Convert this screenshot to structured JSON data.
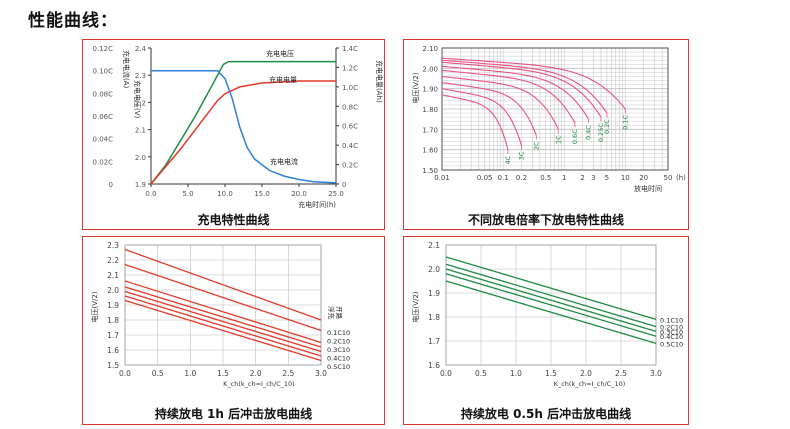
{
  "page": {
    "title": "性能曲线："
  },
  "colors": {
    "frame": "#d9352b",
    "red": "#e03a2a",
    "green": "#1f8a44",
    "blue": "#2f7ed8",
    "pink": "#e8527e",
    "grid": "#bdbdbd"
  },
  "panels": [
    {
      "caption": "充电特性曲线"
    },
    {
      "caption": "不同放电倍率下放电特性曲线"
    },
    {
      "caption": "持续放电 1h 后冲击放电曲线"
    },
    {
      "caption": "持续放电 0.5h 后冲击放电曲线"
    }
  ],
  "chart_data": [
    {
      "type": "line",
      "title": "充电特性曲线",
      "xlabel": "充电时间(h)",
      "xlim": [
        0,
        25
      ],
      "x_ticks": [
        "0.0",
        "5.0",
        "10.0",
        "15.0",
        "20.0",
        "25.0"
      ],
      "left_axis_labels": [
        "充电电流(A)",
        "充电电压(V)"
      ],
      "current_ticks": [
        "0.12C",
        "0.10C",
        "0.08C",
        "0.06C",
        "0.04C",
        "0.02C",
        "0"
      ],
      "voltage_ticks": [
        "2.4",
        "2.3",
        "2.2",
        "2.1",
        "2.0",
        "1.9"
      ],
      "voltage_ylim": [
        1.9,
        2.4
      ],
      "right_axis_label": "充电电量(Ah)",
      "charge_ticks": [
        "1.4C",
        "1.2C",
        "1.0C",
        "0.8C",
        "0.6C",
        "0.4C",
        "0.2C",
        "0"
      ],
      "series": [
        {
          "name": "充电电压",
          "color": "#1f8a44",
          "x": [
            0,
            2,
            4,
            6,
            8,
            9,
            9.8,
            10.5,
            12,
            15,
            20,
            25
          ],
          "y": [
            1.9,
            1.97,
            2.06,
            2.15,
            2.25,
            2.3,
            2.34,
            2.35,
            2.35,
            2.35,
            2.35,
            2.35
          ]
        },
        {
          "name": "充电电量",
          "color": "#e03a2a",
          "x": [
            0,
            2,
            4,
            6,
            8,
            9,
            10,
            12,
            15,
            20,
            25
          ],
          "y": [
            0,
            0.18,
            0.36,
            0.56,
            0.76,
            0.86,
            0.93,
            1.0,
            1.04,
            1.06,
            1.06
          ]
        },
        {
          "name": "充电电流",
          "color": "#2f7ed8",
          "x": [
            0,
            8,
            9,
            10,
            11,
            12,
            13,
            14,
            16,
            18,
            20,
            22,
            25
          ],
          "y": [
            0.1,
            0.1,
            0.1,
            0.093,
            0.075,
            0.05,
            0.032,
            0.022,
            0.012,
            0.007,
            0.004,
            0.002,
            0.001
          ]
        }
      ]
    },
    {
      "type": "line",
      "title": "不同放电倍率下放电特性曲线",
      "xlabel": "放电时间",
      "x_unit": "(h)",
      "ylabel": "电压(V/2)",
      "x_scale": "log",
      "xlim": [
        0.01,
        50
      ],
      "ylim": [
        1.5,
        2.1
      ],
      "x_ticks": [
        "0.01",
        "0.05",
        "0.1",
        "0.2",
        "0.5",
        "1",
        "2",
        "3",
        "5",
        "10",
        "20",
        "50"
      ],
      "x_tick_values": [
        0.01,
        0.05,
        0.1,
        0.2,
        0.5,
        1,
        2,
        3,
        5,
        10,
        20,
        50
      ],
      "y_ticks": [
        "2.10",
        "2.00",
        "1.90",
        "1.80",
        "1.70",
        "1.60",
        "1.50"
      ],
      "series": [
        {
          "name": "0.1C",
          "v0": 2.05,
          "end_x": 10,
          "end_y": 1.8
        },
        {
          "name": "0.2C",
          "v0": 2.04,
          "end_x": 5,
          "end_y": 1.78
        },
        {
          "name": "0.25C",
          "v0": 2.03,
          "end_x": 4,
          "end_y": 1.76
        },
        {
          "name": "0.4C",
          "v0": 2.01,
          "end_x": 2.5,
          "end_y": 1.75
        },
        {
          "name": "0.6C",
          "v0": 1.99,
          "end_x": 1.5,
          "end_y": 1.73
        },
        {
          "name": "1C",
          "v0": 1.96,
          "end_x": 0.8,
          "end_y": 1.7
        },
        {
          "name": "2C",
          "v0": 1.93,
          "end_x": 0.35,
          "end_y": 1.67
        },
        {
          "name": "3C",
          "v0": 1.9,
          "end_x": 0.2,
          "end_y": 1.62
        },
        {
          "name": "4C",
          "v0": 1.87,
          "end_x": 0.12,
          "end_y": 1.6
        }
      ]
    },
    {
      "type": "line",
      "title": "持续放电 1h 后冲击放电曲线",
      "xlabel": "K_ch(k_ch=I_ch/C_10)",
      "ylabel": "电压(V/2)",
      "xlim": [
        0,
        3
      ],
      "ylim": [
        1.5,
        2.3
      ],
      "x_ticks": [
        "0.0",
        "0.5",
        "1.0",
        "1.5",
        "2.0",
        "2.5",
        "3.0"
      ],
      "y_ticks": [
        "2.3",
        "2.2",
        "2.1",
        "2.0",
        "1.9",
        "1.8",
        "1.7",
        "1.6",
        "1.5"
      ],
      "series": [
        {
          "name": "浮充",
          "x": [
            0,
            3
          ],
          "y": [
            2.27,
            1.8
          ]
        },
        {
          "name": "开路",
          "x": [
            0,
            3
          ],
          "y": [
            2.17,
            1.73
          ]
        },
        {
          "name": "0.1C10",
          "x": [
            0,
            3
          ],
          "y": [
            2.06,
            1.65
          ]
        },
        {
          "name": "0.2C10",
          "x": [
            0,
            3
          ],
          "y": [
            2.02,
            1.62
          ]
        },
        {
          "name": "0.3C10",
          "x": [
            0,
            3
          ],
          "y": [
            1.99,
            1.59
          ]
        },
        {
          "name": "0.4C10",
          "x": [
            0,
            3
          ],
          "y": [
            1.96,
            1.56
          ]
        },
        {
          "name": "0.5C10",
          "x": [
            0,
            3
          ],
          "y": [
            1.93,
            1.53
          ]
        }
      ]
    },
    {
      "type": "line",
      "title": "持续放电 0.5h 后冲击放电曲线",
      "xlabel": "K_ch(k_ch=I_ch/C_10)",
      "ylabel": "电压(V/2)",
      "xlim": [
        0,
        3
      ],
      "ylim": [
        1.6,
        2.1
      ],
      "x_ticks": [
        "0.0",
        "0.5",
        "1.0",
        "1.5",
        "2.0",
        "2.5",
        "3.0"
      ],
      "y_ticks": [
        "2.1",
        "2.0",
        "1.9",
        "1.8",
        "1.7",
        "1.6"
      ],
      "series": [
        {
          "name": "0.1C10",
          "x": [
            0,
            3
          ],
          "y": [
            2.05,
            1.79
          ]
        },
        {
          "name": "0.2C10",
          "x": [
            0,
            3
          ],
          "y": [
            2.02,
            1.76
          ]
        },
        {
          "name": "0.3C10",
          "x": [
            0,
            3
          ],
          "y": [
            2.0,
            1.74
          ]
        },
        {
          "name": "0.4C10",
          "x": [
            0,
            3
          ],
          "y": [
            1.98,
            1.72
          ]
        },
        {
          "name": "0.5C10",
          "x": [
            0,
            3
          ],
          "y": [
            1.95,
            1.69
          ]
        }
      ]
    }
  ]
}
